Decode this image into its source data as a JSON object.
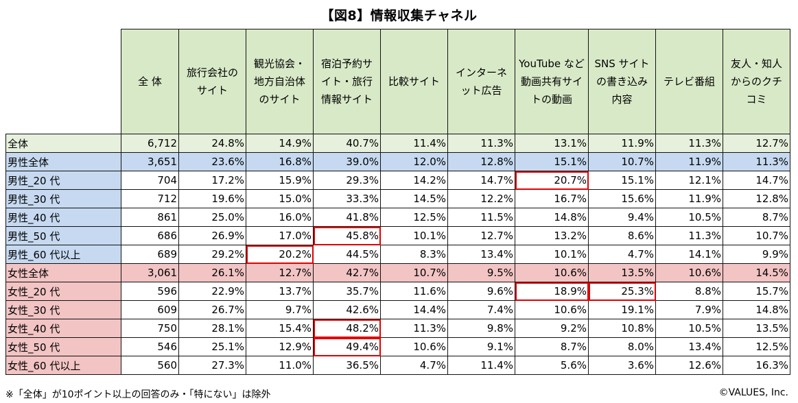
{
  "title": "【図8】情報収集チャネル",
  "note": "※「全体」が10ポイント以上の回答のみ・「特にない」は除外",
  "copyright": "©VALUES, Inc.",
  "chart_data": {
    "type": "table",
    "title": "【図8】情報収集チャネル",
    "columns": [
      "全 体",
      "旅行会社のサイト",
      "観光協会・地方自治体のサイト",
      "宿泊予約サイト・旅行情報サイト",
      "比較サイト",
      "インターネット広告",
      "YouTube など動画共有サイトの動画",
      "SNS サイトの書き込み内容",
      "テレビ番組",
      "友人・知人からのクチコミ"
    ],
    "rows": [
      {
        "label": "全体",
        "group": "total",
        "values": [
          "6,712",
          "24.8%",
          "14.9%",
          "40.7%",
          "11.4%",
          "11.3%",
          "13.1%",
          "11.9%",
          "11.3%",
          "12.7%"
        ],
        "highlight": []
      },
      {
        "label": "男性全体",
        "group": "male-total",
        "values": [
          "3,651",
          "23.6%",
          "16.8%",
          "39.0%",
          "12.0%",
          "12.8%",
          "15.1%",
          "10.7%",
          "11.9%",
          "11.3%"
        ],
        "highlight": []
      },
      {
        "label": "男性_20 代",
        "group": "male",
        "values": [
          "704",
          "17.2%",
          "15.9%",
          "29.3%",
          "14.2%",
          "14.7%",
          "20.7%",
          "15.1%",
          "12.1%",
          "14.7%"
        ],
        "highlight": [
          6
        ]
      },
      {
        "label": "男性_30 代",
        "group": "male",
        "values": [
          "712",
          "19.6%",
          "15.0%",
          "33.3%",
          "14.5%",
          "12.2%",
          "16.7%",
          "15.6%",
          "11.9%",
          "12.8%"
        ],
        "highlight": []
      },
      {
        "label": "男性_40 代",
        "group": "male",
        "values": [
          "861",
          "25.0%",
          "16.0%",
          "41.8%",
          "12.5%",
          "11.5%",
          "14.8%",
          "9.4%",
          "10.5%",
          "8.7%"
        ],
        "highlight": []
      },
      {
        "label": "男性_50 代",
        "group": "male",
        "values": [
          "686",
          "26.9%",
          "17.0%",
          "45.8%",
          "10.1%",
          "12.7%",
          "13.2%",
          "8.6%",
          "11.3%",
          "10.7%"
        ],
        "highlight": [
          3
        ]
      },
      {
        "label": "男性_60 代以上",
        "group": "male",
        "values": [
          "689",
          "29.2%",
          "20.2%",
          "44.5%",
          "8.3%",
          "13.4%",
          "10.1%",
          "4.7%",
          "14.1%",
          "9.9%"
        ],
        "highlight": [
          2
        ]
      },
      {
        "label": "女性全体",
        "group": "female-total",
        "values": [
          "3,061",
          "26.1%",
          "12.7%",
          "42.7%",
          "10.7%",
          "9.5%",
          "10.6%",
          "13.5%",
          "10.6%",
          "14.5%"
        ],
        "highlight": []
      },
      {
        "label": "女性_20 代",
        "group": "female",
        "values": [
          "596",
          "22.9%",
          "13.7%",
          "35.7%",
          "11.6%",
          "9.6%",
          "18.9%",
          "25.3%",
          "8.8%",
          "15.7%"
        ],
        "highlight": [
          6,
          7
        ]
      },
      {
        "label": "女性_30 代",
        "group": "female",
        "values": [
          "609",
          "26.7%",
          "9.7%",
          "42.6%",
          "14.4%",
          "7.4%",
          "10.6%",
          "19.1%",
          "7.9%",
          "14.8%"
        ],
        "highlight": []
      },
      {
        "label": "女性_40 代",
        "group": "female",
        "values": [
          "750",
          "28.1%",
          "15.4%",
          "48.2%",
          "11.3%",
          "9.8%",
          "9.2%",
          "10.8%",
          "10.5%",
          "13.5%"
        ],
        "highlight": [
          3
        ]
      },
      {
        "label": "女性_50 代",
        "group": "female",
        "values": [
          "546",
          "25.1%",
          "12.9%",
          "49.4%",
          "10.6%",
          "9.1%",
          "8.7%",
          "8.0%",
          "13.4%",
          "12.5%"
        ],
        "highlight": [
          3
        ]
      },
      {
        "label": "女性_60 代以上",
        "group": "female",
        "values": [
          "560",
          "27.3%",
          "11.0%",
          "36.5%",
          "4.7%",
          "11.4%",
          "5.6%",
          "3.6%",
          "12.6%",
          "16.3%"
        ],
        "highlight": []
      }
    ],
    "colors": {
      "header": "#d8e9c7",
      "male": "#c6d9f0",
      "female": "#f2c4c4",
      "highlight": "#e00000"
    }
  }
}
